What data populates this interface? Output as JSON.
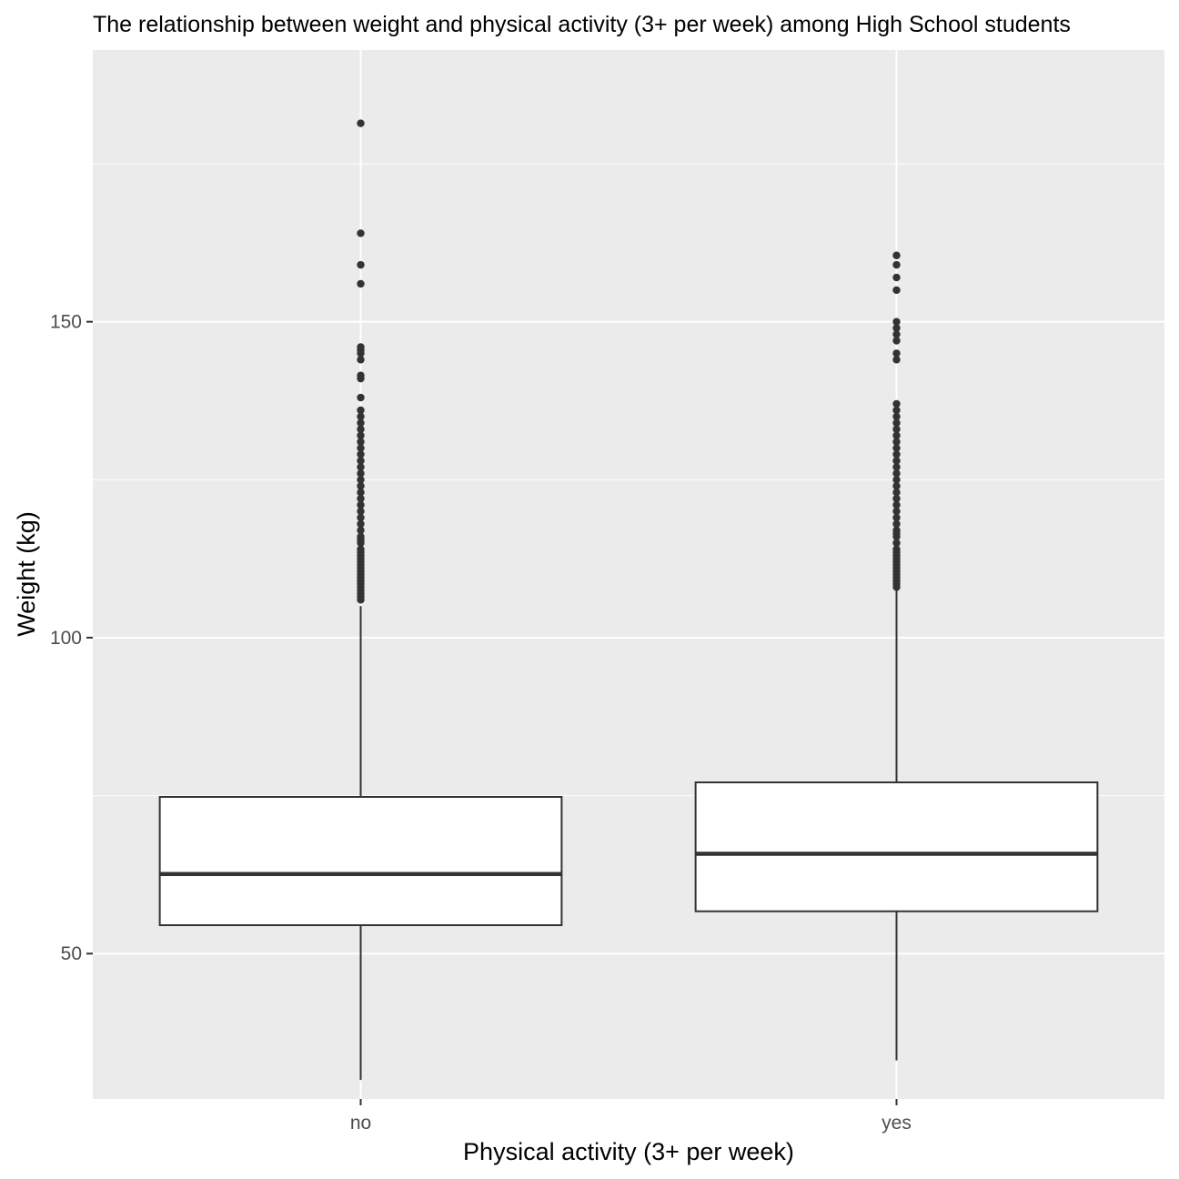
{
  "chart_data": {
    "type": "boxplot",
    "title": "The relationship between weight and physical activity (3+ per week) among High School students",
    "xlabel": "Physical activity (3+ per week)",
    "ylabel": "Weight (kg)",
    "ylim": [
      27,
      193
    ],
    "yticks": [
      50,
      100,
      150
    ],
    "grid": true,
    "colors": {
      "panel": "#ebebeb",
      "grid": "#ffffff",
      "box_fill": "#ffffff",
      "stroke": "#333333"
    },
    "categories": [
      "no",
      "yes"
    ],
    "boxes": [
      {
        "category": "no",
        "lower_whisker": 30,
        "q1": 54.5,
        "median": 62.6,
        "q3": 74.8,
        "upper_whisker": 105,
        "outliers": [
          106,
          106.5,
          107,
          107.5,
          108,
          108.5,
          109,
          109.5,
          110,
          110.5,
          111,
          111.5,
          112,
          112.5,
          113,
          113.5,
          114,
          115,
          115.5,
          116,
          117,
          118,
          119,
          120,
          121,
          122,
          123,
          124,
          125,
          126,
          127,
          128,
          129,
          130,
          131,
          132,
          133,
          134,
          135,
          136,
          138,
          141,
          141.5,
          144,
          145,
          145.5,
          146,
          156,
          159,
          164,
          181.4
        ]
      },
      {
        "category": "yes",
        "lower_whisker": 33.1,
        "q1": 56.7,
        "median": 65.8,
        "q3": 77.1,
        "upper_whisker": 107.5,
        "outliers": [
          108,
          108.5,
          109,
          109.5,
          110,
          110.5,
          111,
          111.5,
          112,
          112.5,
          113,
          113.5,
          114,
          115,
          116,
          116.5,
          117,
          118,
          119,
          120,
          121,
          122,
          123,
          124,
          125,
          126,
          127,
          128,
          129,
          130,
          131,
          132,
          133,
          134,
          135,
          136,
          137,
          144,
          145,
          147,
          148,
          149,
          150,
          155,
          157,
          159,
          160.5
        ]
      }
    ]
  }
}
